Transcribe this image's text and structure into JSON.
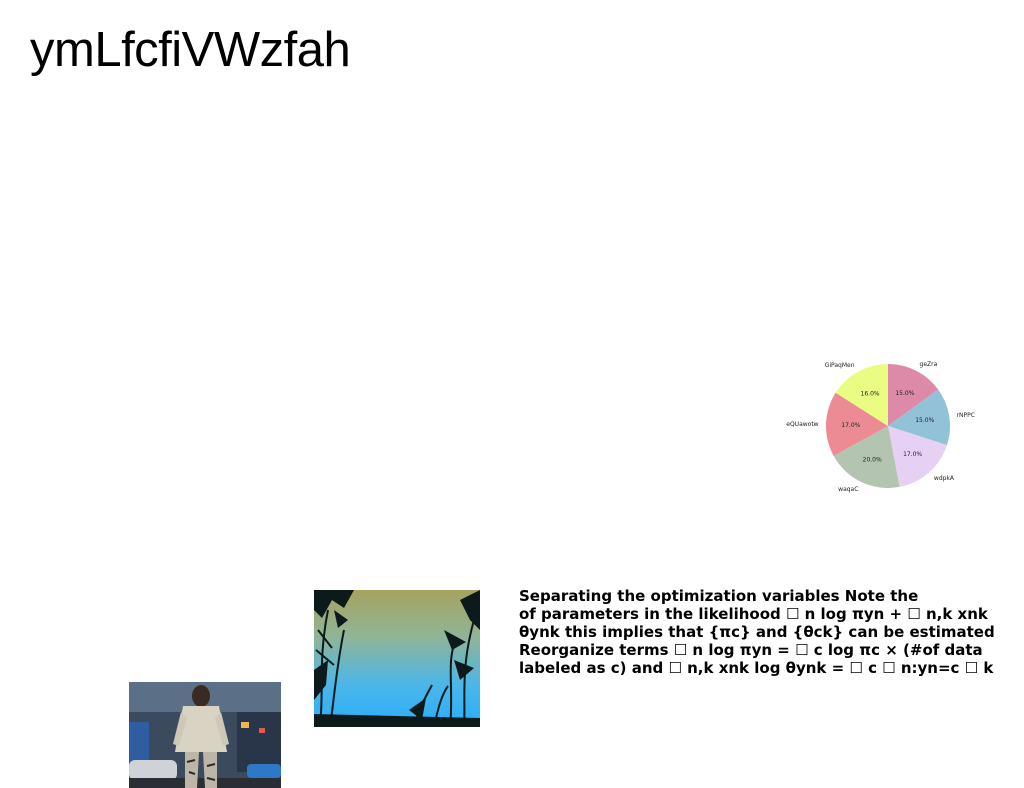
{
  "page": {
    "title": "ymLfcfiVWzfah"
  },
  "chart_data": {
    "type": "pie",
    "slices": [
      {
        "label": "geZra",
        "value": 15.0,
        "pct_label": "15.0%",
        "color": "#dd8aa8"
      },
      {
        "label": "rNPPC",
        "value": 15.0,
        "pct_label": "15.0%",
        "color": "#92c2d8"
      },
      {
        "label": "wdpkA",
        "value": 17.0,
        "pct_label": "17.0%",
        "color": "#e6d0f4"
      },
      {
        "label": "waqaC",
        "value": 20.0,
        "pct_label": "20.0%",
        "color": "#b3c4b0"
      },
      {
        "label": "eQUawotw",
        "value": 17.0,
        "pct_label": "17.0%",
        "color": "#ec8b94"
      },
      {
        "label": "GiPaqMen",
        "value": 16.0,
        "pct_label": "16.0%",
        "color": "#eafc82"
      }
    ],
    "start_angle_deg": 90,
    "direction": "clockwise",
    "legend": "none"
  },
  "body": {
    "lines": [
      "Separating the optimization variables Note the",
      "of parameters in the likelihood ☐ n log πyn + ☐ n,k xnk",
      "θynk this implies that {πc} and {θck} can be estimated",
      "Reorganize terms ☐ n log πyn = ☐ c log πc × (#of data",
      "labeled as c) and ☐ n,k xnk log θynk = ☐ c ☐ n:yn=c ☐ k"
    ]
  },
  "images": {
    "plants": {
      "icon": "reeds-photo"
    },
    "person": {
      "icon": "person-street-photo"
    }
  }
}
